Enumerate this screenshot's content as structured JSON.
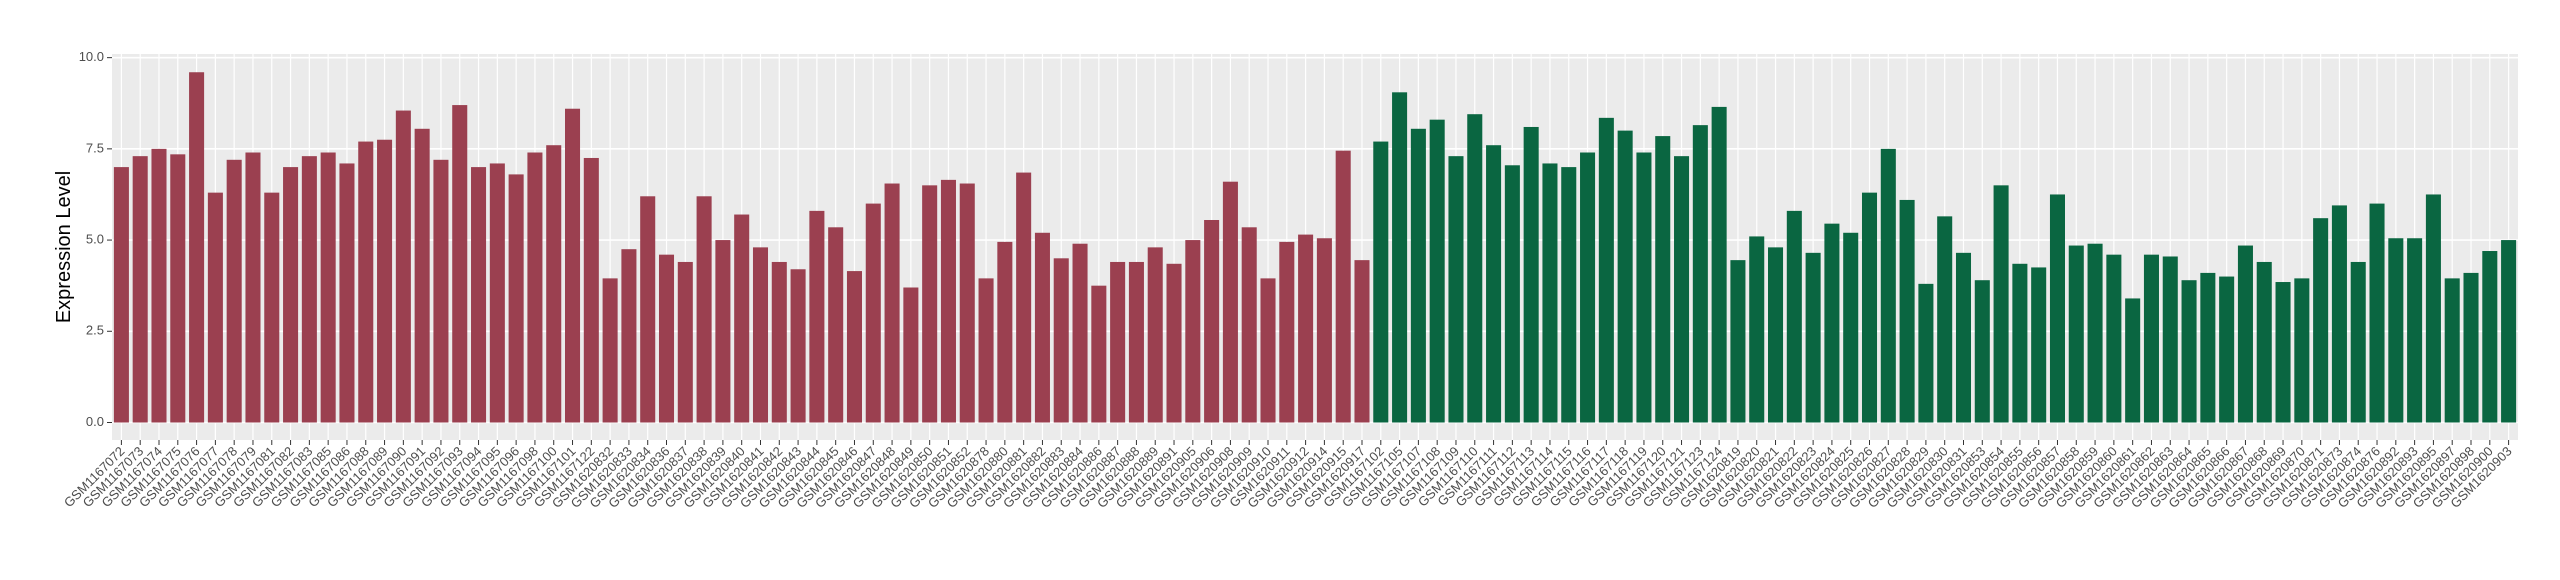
{
  "chart_data": {
    "type": "bar",
    "y_label": "Expression Level",
    "categories": [
      "GSM1167072",
      "GSM1167073",
      "GSM1167074",
      "GSM1167075",
      "GSM1167076",
      "GSM1167077",
      "GSM1167078",
      "GSM1167079",
      "GSM1167081",
      "GSM1167082",
      "GSM1167083",
      "GSM1167085",
      "GSM1167086",
      "GSM1167088",
      "GSM1167089",
      "GSM1167090",
      "GSM1167091",
      "GSM1167092",
      "GSM1167093",
      "GSM1167094",
      "GSM1167095",
      "GSM1167096",
      "GSM1167098",
      "GSM1167100",
      "GSM1167101",
      "GSM1167122",
      "GSM1620832",
      "GSM1620833",
      "GSM1620834",
      "GSM1620836",
      "GSM1620837",
      "GSM1620838",
      "GSM1620839",
      "GSM1620840",
      "GSM1620841",
      "GSM1620842",
      "GSM1620843",
      "GSM1620844",
      "GSM1620845",
      "GSM1620846",
      "GSM1620847",
      "GSM1620848",
      "GSM1620849",
      "GSM1620850",
      "GSM1620851",
      "GSM1620852",
      "GSM1620878",
      "GSM1620880",
      "GSM1620881",
      "GSM1620882",
      "GSM1620883",
      "GSM1620884",
      "GSM1620886",
      "GSM1620887",
      "GSM1620888",
      "GSM1620889",
      "GSM1620891",
      "GSM1620905",
      "GSM1620906",
      "GSM1620908",
      "GSM1620909",
      "GSM1620910",
      "GSM1620911",
      "GSM1620912",
      "GSM1620914",
      "GSM1620915",
      "GSM1620917",
      "GSM1167102",
      "GSM1167105",
      "GSM1167107",
      "GSM1167108",
      "GSM1167109",
      "GSM1167110",
      "GSM1167111",
      "GSM1167112",
      "GSM1167113",
      "GSM1167114",
      "GSM1167115",
      "GSM1167116",
      "GSM1167117",
      "GSM1167118",
      "GSM1167119",
      "GSM1167120",
      "GSM1167121",
      "GSM1167123",
      "GSM1167124",
      "GSM1620819",
      "GSM1620820",
      "GSM1620821",
      "GSM1620822",
      "GSM1620823",
      "GSM1620824",
      "GSM1620825",
      "GSM1620826",
      "GSM1620827",
      "GSM1620828",
      "GSM1620829",
      "GSM1620830",
      "GSM1620831",
      "GSM1620853",
      "GSM1620854",
      "GSM1620855",
      "GSM1620856",
      "GSM1620857",
      "GSM1620858",
      "GSM1620859",
      "GSM1620860",
      "GSM1620861",
      "GSM1620862",
      "GSM1620863",
      "GSM1620864",
      "GSM1620865",
      "GSM1620866",
      "GSM1620867",
      "GSM1620868",
      "GSM1620869",
      "GSM1620870",
      "GSM1620871",
      "GSM1620873",
      "GSM1620874",
      "GSM1620876",
      "GSM1620892",
      "GSM1620893",
      "GSM1620895",
      "GSM1620897",
      "GSM1620898",
      "GSM1620900",
      "GSM1620903"
    ],
    "values": [
      7.0,
      7.3,
      7.5,
      7.35,
      9.6,
      6.3,
      7.2,
      7.4,
      6.3,
      7.0,
      7.3,
      7.4,
      7.1,
      7.7,
      7.75,
      8.55,
      8.05,
      7.2,
      8.7,
      7.0,
      7.1,
      6.8,
      7.4,
      7.6,
      8.6,
      7.25,
      3.95,
      4.75,
      6.2,
      4.6,
      4.4,
      6.2,
      5.0,
      5.7,
      4.8,
      4.4,
      4.2,
      5.8,
      5.35,
      4.15,
      6.0,
      6.55,
      3.7,
      6.5,
      6.65,
      6.55,
      3.95,
      4.95,
      6.85,
      5.2,
      4.5,
      4.9,
      3.75,
      4.4,
      4.4,
      4.8,
      4.35,
      5.0,
      5.55,
      6.6,
      5.35,
      3.95,
      4.95,
      5.15,
      5.05,
      7.45,
      4.45,
      7.7,
      9.05,
      8.05,
      8.3,
      7.3,
      8.45,
      7.6,
      7.05,
      8.1,
      7.1,
      7.0,
      7.4,
      8.35,
      8.0,
      7.4,
      7.85,
      7.3,
      8.15,
      8.65,
      4.45,
      5.1,
      4.8,
      5.8,
      4.65,
      5.45,
      5.2,
      6.3,
      7.5,
      6.1,
      3.8,
      5.65,
      4.65,
      3.9,
      6.5,
      4.35,
      4.25,
      6.25,
      4.85,
      4.9,
      4.6,
      3.4,
      4.6,
      4.55,
      3.9,
      4.1,
      4.0,
      4.85,
      4.4,
      3.85,
      3.95,
      5.6,
      5.95,
      4.4,
      6.0,
      5.05,
      5.05,
      6.25,
      3.95,
      4.1,
      4.7,
      5.0
    ],
    "bar_colors": [
      "#9b4050",
      "#9b4050",
      "#9b4050",
      "#9b4050",
      "#9b4050",
      "#9b4050",
      "#9b4050",
      "#9b4050",
      "#9b4050",
      "#9b4050",
      "#9b4050",
      "#9b4050",
      "#9b4050",
      "#9b4050",
      "#9b4050",
      "#9b4050",
      "#9b4050",
      "#9b4050",
      "#9b4050",
      "#9b4050",
      "#9b4050",
      "#9b4050",
      "#9b4050",
      "#9b4050",
      "#9b4050",
      "#9b4050",
      "#9b4050",
      "#9b4050",
      "#9b4050",
      "#9b4050",
      "#9b4050",
      "#9b4050",
      "#9b4050",
      "#9b4050",
      "#9b4050",
      "#9b4050",
      "#9b4050",
      "#9b4050",
      "#9b4050",
      "#9b4050",
      "#9b4050",
      "#9b4050",
      "#9b4050",
      "#9b4050",
      "#9b4050",
      "#9b4050",
      "#9b4050",
      "#9b4050",
      "#9b4050",
      "#9b4050",
      "#9b4050",
      "#9b4050",
      "#9b4050",
      "#9b4050",
      "#9b4050",
      "#9b4050",
      "#9b4050",
      "#9b4050",
      "#9b4050",
      "#9b4050",
      "#9b4050",
      "#9b4050",
      "#9b4050",
      "#9b4050",
      "#9b4050",
      "#9b4050",
      "#9b4050",
      "#0a6641",
      "#0a6641",
      "#0a6641",
      "#0a6641",
      "#0a6641",
      "#0a6641",
      "#0a6641",
      "#0a6641",
      "#0a6641",
      "#0a6641",
      "#0a6641",
      "#0a6641",
      "#0a6641",
      "#0a6641",
      "#0a6641",
      "#0a6641",
      "#0a6641",
      "#0a6641",
      "#0a6641",
      "#0a6641",
      "#0a6641",
      "#0a6641",
      "#0a6641",
      "#0a6641",
      "#0a6641",
      "#0a6641",
      "#0a6641",
      "#0a6641",
      "#0a6641",
      "#0a6641",
      "#0a6641",
      "#0a6641",
      "#0a6641",
      "#0a6641",
      "#0a6641",
      "#0a6641",
      "#0a6641",
      "#0a6641",
      "#0a6641",
      "#0a6641",
      "#0a6641",
      "#0a6641",
      "#0a6641",
      "#0a6641",
      "#0a6641",
      "#0a6641",
      "#0a6641",
      "#0a6641",
      "#0a6641",
      "#0a6641",
      "#0a6641",
      "#0a6641",
      "#0a6641",
      "#0a6641",
      "#0a6641",
      "#0a6641",
      "#0a6641",
      "#0a6641",
      "#0a6641",
      "#0a6641",
      "#0a6641",
      "#0a6641"
    ],
    "ylim": [
      -0.48,
      10.1
    ],
    "yticks": [
      {
        "value": 0,
        "label": "0.0"
      },
      {
        "value": 2.5,
        "label": "2.5"
      },
      {
        "value": 5,
        "label": "5.0"
      },
      {
        "value": 7.5,
        "label": "7.5"
      },
      {
        "value": 10,
        "label": "10.0"
      }
    ],
    "grid": true
  }
}
